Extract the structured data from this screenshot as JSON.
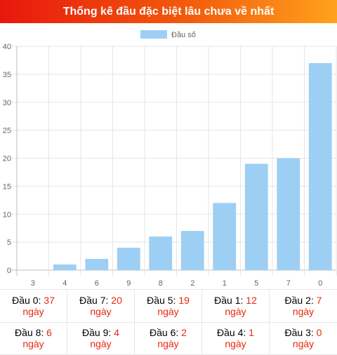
{
  "header": {
    "title": "Thống kê đầu đặc biệt lâu chưa về nhất"
  },
  "chart_data": {
    "type": "bar",
    "title": "",
    "xlabel": "",
    "ylabel": "",
    "legend": {
      "label": "Đầu số",
      "position": "top"
    },
    "categories": [
      "3",
      "4",
      "6",
      "9",
      "8",
      "2",
      "1",
      "5",
      "7",
      "0"
    ],
    "values": [
      0,
      1,
      2,
      4,
      6,
      7,
      12,
      19,
      20,
      37
    ],
    "ylim": [
      0,
      40
    ],
    "yticks": [
      "0",
      "5",
      "10",
      "15",
      "20",
      "25",
      "30",
      "35",
      "40"
    ],
    "grid": true,
    "bar_color": "#9ccff3"
  },
  "stats": [
    {
      "label": "Đầu 0: ",
      "value": "37",
      "unit": "ngày"
    },
    {
      "label": "Đầu 7: ",
      "value": "20",
      "unit": "ngày"
    },
    {
      "label": "Đầu 5: ",
      "value": "19",
      "unit": "ngày"
    },
    {
      "label": "Đầu 1: ",
      "value": "12",
      "unit": "ngày"
    },
    {
      "label": "Đầu 2: ",
      "value": "7",
      "unit": "ngày"
    },
    {
      "label": "Đầu 8: ",
      "value": "6",
      "unit": "ngày"
    },
    {
      "label": "Đầu 9: ",
      "value": "4",
      "unit": "ngày"
    },
    {
      "label": "Đầu 6: ",
      "value": "2",
      "unit": "ngày"
    },
    {
      "label": "Đầu 4: ",
      "value": "1",
      "unit": "ngày"
    },
    {
      "label": "Đầu 3: ",
      "value": "0",
      "unit": "ngày"
    }
  ]
}
